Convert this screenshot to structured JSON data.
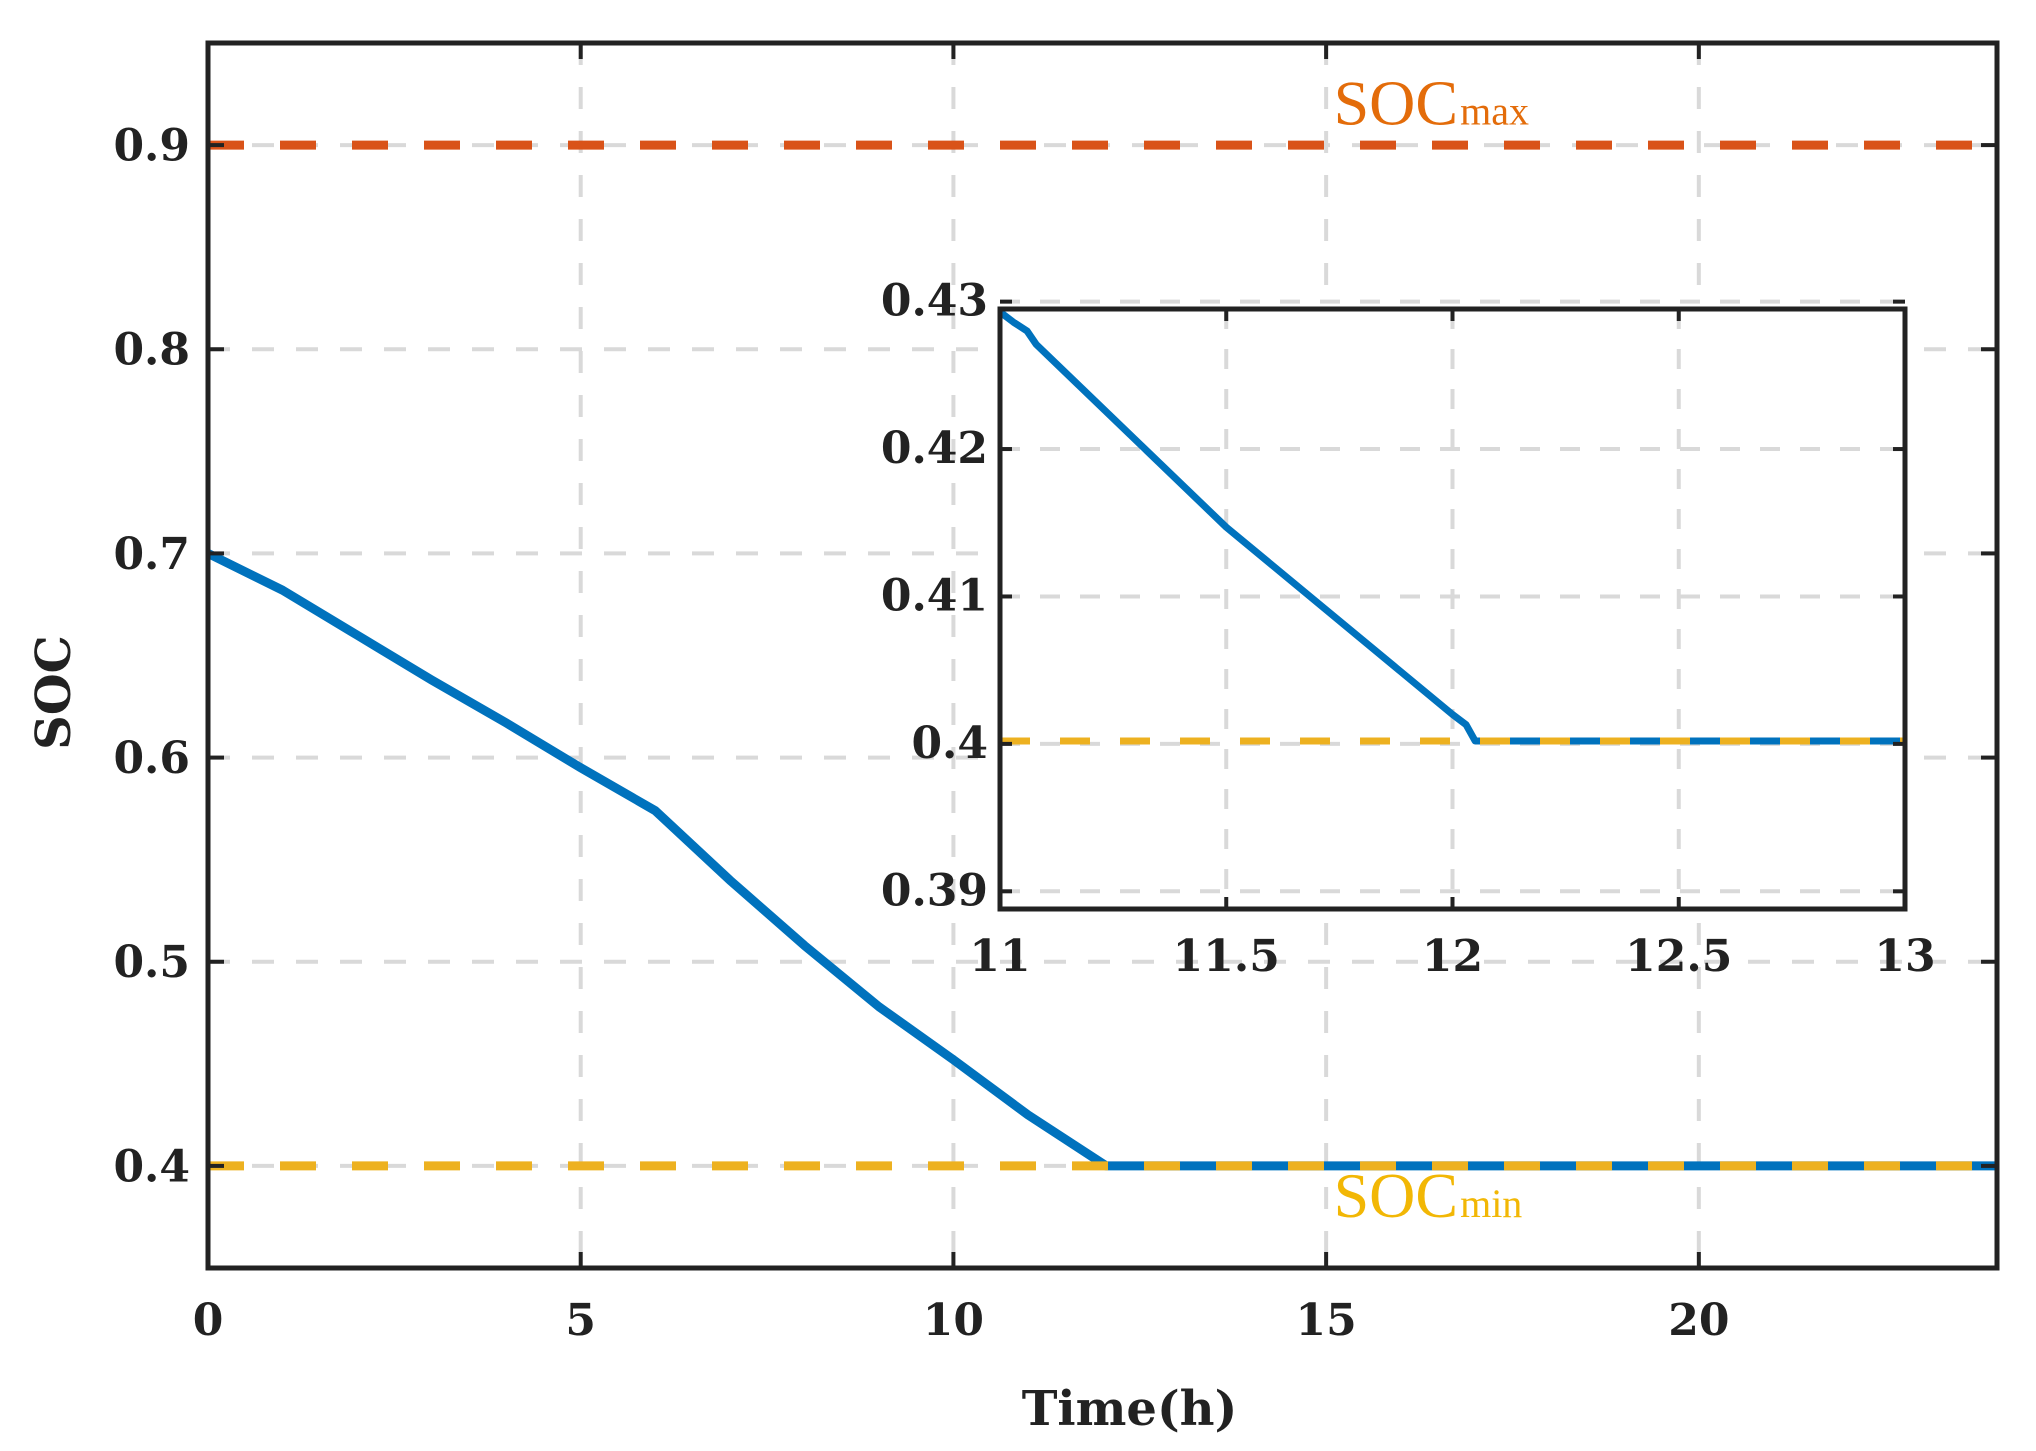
{
  "chart_data": [
    {
      "type": "line",
      "xlabel": "Time(h)",
      "ylabel": "SOC",
      "xlim": [
        0,
        24
      ],
      "ylim": [
        0.35,
        0.95
      ],
      "xticks": [
        0,
        5,
        10,
        15,
        20
      ],
      "yticks": [
        0.4,
        0.5,
        0.6,
        0.7,
        0.8,
        0.9
      ],
      "xtick_labels": [
        "0",
        "5",
        "10",
        "15",
        "20"
      ],
      "ytick_labels": [
        "0.4",
        "0.5",
        "0.6",
        "0.7",
        "0.8",
        "0.9"
      ],
      "grid": true,
      "series": [
        {
          "name": "SOC",
          "color": "#0072BD",
          "style": "solid",
          "x": [
            0,
            1,
            2,
            3,
            4,
            5,
            6,
            7,
            8,
            9,
            10,
            11,
            12.05,
            24
          ],
          "y": [
            0.7,
            0.682,
            0.66,
            0.638,
            0.617,
            0.595,
            0.574,
            0.54,
            0.508,
            0.478,
            0.452,
            0.425,
            0.4,
            0.4
          ]
        },
        {
          "name": "SOC max",
          "color": "#D95319",
          "style": "dashed",
          "x": [
            0,
            24
          ],
          "y": [
            0.9,
            0.9
          ]
        },
        {
          "name": "SOC min",
          "color": "#EDB120",
          "style": "dashed",
          "x": [
            0,
            24
          ],
          "y": [
            0.4,
            0.4
          ]
        }
      ],
      "annotations": [
        {
          "id": "soc-max",
          "main": "SOC",
          "sub": "max",
          "color": "#E36C0A",
          "x": 15.1,
          "y": 0.91
        },
        {
          "id": "soc-min",
          "main": "SOC",
          "sub": "min",
          "color": "#F2B705",
          "x": 15.1,
          "y": 0.375
        }
      ]
    },
    {
      "type": "line",
      "role": "inset-zoom",
      "xlabel": "",
      "ylabel": "",
      "xlim": [
        11,
        13
      ],
      "ylim": [
        0.3888,
        0.4295
      ],
      "xticks": [
        11,
        11.5,
        12,
        12.5,
        13
      ],
      "yticks": [
        0.39,
        0.4,
        0.41,
        0.42,
        0.43
      ],
      "xtick_labels": [
        "11",
        "11.5",
        "12",
        "12.5",
        "13"
      ],
      "ytick_labels": [
        "0.39",
        "0.4",
        "0.41",
        "0.42",
        "0.43"
      ],
      "grid": true,
      "series": [
        {
          "name": "SOC",
          "color": "#0072BD",
          "style": "solid",
          "x": [
            11,
            11.03,
            11.06,
            11.08,
            11.5,
            12.0,
            12.03,
            12.05,
            13
          ],
          "y": [
            0.4293,
            0.4286,
            0.428,
            0.4271,
            0.4147,
            0.402,
            0.4013,
            0.4002,
            0.4002
          ]
        },
        {
          "name": "SOC min",
          "color": "#EDB120",
          "style": "dashed",
          "x": [
            11,
            13
          ],
          "y": [
            0.4002,
            0.4002
          ]
        }
      ]
    }
  ]
}
